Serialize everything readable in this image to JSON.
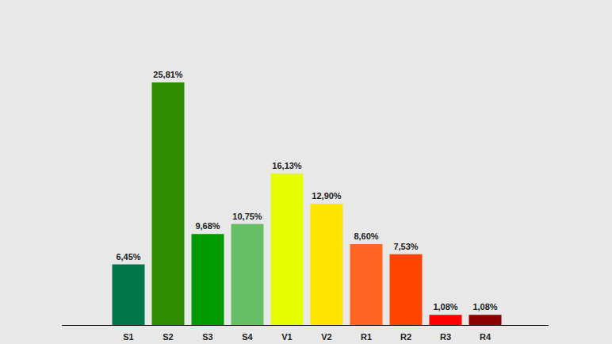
{
  "chart_data": {
    "type": "bar",
    "categories": [
      "S1",
      "S2",
      "S3",
      "S4",
      "V1",
      "V2",
      "R1",
      "R2",
      "R3",
      "R4"
    ],
    "values": [
      6.45,
      25.81,
      9.68,
      10.75,
      16.13,
      12.9,
      8.6,
      7.53,
      1.08,
      1.08
    ],
    "value_labels": [
      "6,45%",
      "25,81%",
      "9,68%",
      "10,75%",
      "16,13%",
      "12,90%",
      "8,60%",
      "7,53%",
      "1,08%",
      "1,08%"
    ],
    "colors": [
      "#00774a",
      "#2e8b00",
      "#009900",
      "#66bf66",
      "#e6ff00",
      "#ffe600",
      "#ff6622",
      "#ff4400",
      "#ff0000",
      "#8b0000"
    ],
    "ylim": [
      0,
      25.81
    ],
    "data_labels": true,
    "tick_labels": "x"
  }
}
